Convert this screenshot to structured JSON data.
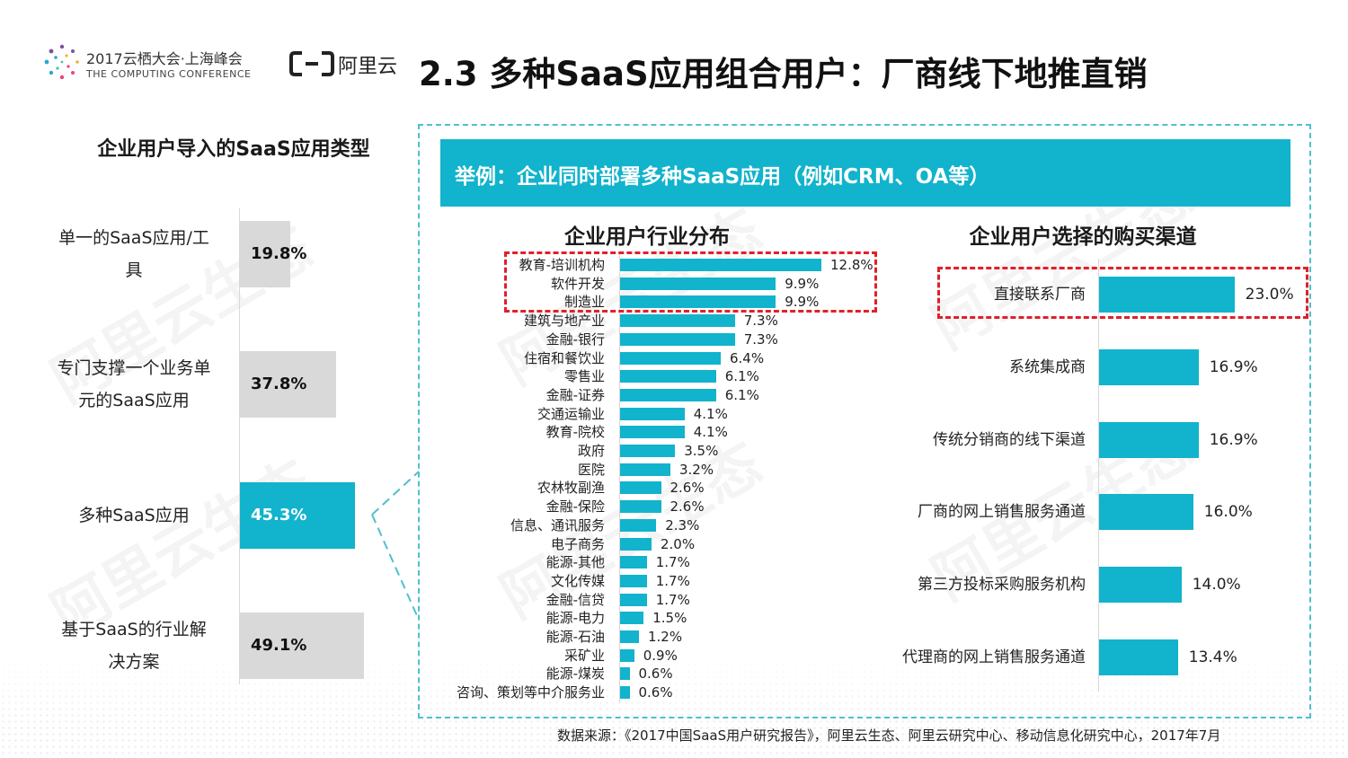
{
  "header": {
    "conference_title": "2017云栖大会·上海峰会",
    "conference_subtitle": "THE COMPUTING CONFERENCE",
    "brand_name": "阿里云",
    "page_title": "2.3 多种SaaS应用组合用户：厂商线下地推直销"
  },
  "banner": {
    "text": "举例：企业同时部署多种SaaS应用（例如CRM、OA等）"
  },
  "footer": {
    "source": "数据来源：《2017中国SaaS用户研究报告》，阿里云生态、阿里云研究中心、移动信息化研究中心，2017年7月"
  },
  "watermark": {
    "text": "阿里云生态"
  },
  "colors": {
    "accent": "#12b3cc",
    "gray_bar": "#d9d9d9",
    "highlight": "#e0202a"
  },
  "chart_data": [
    {
      "type": "bar",
      "orientation": "horizontal",
      "title": "企业用户导入的SaaS应用类型",
      "categories": [
        "单一的SaaS应用/工具",
        "专门支撑一个业务单元的SaaS应用",
        "多种SaaS应用",
        "基于SaaS的行业解决方案"
      ],
      "label_lines": [
        [
          "单一的SaaS应用/工",
          "具"
        ],
        [
          "专门支撑一个业务单",
          "元的SaaS应用"
        ],
        [
          "多种SaaS应用"
        ],
        [
          "基于SaaS的行业解",
          "决方案"
        ]
      ],
      "values": [
        19.8,
        37.8,
        45.3,
        49.1
      ],
      "value_labels": [
        "19.8%",
        "37.8%",
        "45.3%",
        "49.1%"
      ],
      "highlight_index": 2,
      "xlim": [
        0,
        100
      ]
    },
    {
      "type": "bar",
      "orientation": "horizontal",
      "title": "企业用户行业分布",
      "categories": [
        "教育-培训机构",
        "软件开发",
        "制造业",
        "建筑与地产业",
        "金融-银行",
        "住宿和餐饮业",
        "零售业",
        "金融-证券",
        "交通运输业",
        "教育-院校",
        "政府",
        "医院",
        "农林牧副渔",
        "金融-保险",
        "信息、通讯服务",
        "电子商务",
        "能源-其他",
        "文化传媒",
        "金融-信贷",
        "能源-电力",
        "能源-石油",
        "采矿业",
        "能源-煤炭",
        "咨询、策划等中介服务业"
      ],
      "values": [
        12.8,
        9.9,
        9.9,
        7.3,
        7.3,
        6.4,
        6.1,
        6.1,
        4.1,
        4.1,
        3.5,
        3.2,
        2.6,
        2.6,
        2.3,
        2.0,
        1.7,
        1.7,
        1.7,
        1.5,
        1.2,
        0.9,
        0.6,
        0.6
      ],
      "value_labels": [
        "12.8%",
        "9.9%",
        "9.9%",
        "7.3%",
        "7.3%",
        "6.4%",
        "6.1%",
        "6.1%",
        "4.1%",
        "4.1%",
        "3.5%",
        "3.2%",
        "2.6%",
        "2.6%",
        "2.3%",
        "2.0%",
        "1.7%",
        "1.7%",
        "1.7%",
        "1.5%",
        "1.2%",
        "0.9%",
        "0.6%",
        "0.6%"
      ],
      "highlighted_top": 3
    },
    {
      "type": "bar",
      "orientation": "horizontal",
      "title": "企业用户选择的购买渠道",
      "categories": [
        "直接联系厂商",
        "系统集成商",
        "传统分销商的线下渠道",
        "厂商的网上销售服务通道",
        "第三方投标采购服务机构",
        "代理商的网上销售服务通道"
      ],
      "values": [
        23.0,
        16.9,
        16.9,
        16.0,
        14.0,
        13.4
      ],
      "value_labels": [
        "23.0%",
        "16.9%",
        "16.9%",
        "16.0%",
        "14.0%",
        "13.4%"
      ],
      "highlighted_top": 1
    }
  ]
}
